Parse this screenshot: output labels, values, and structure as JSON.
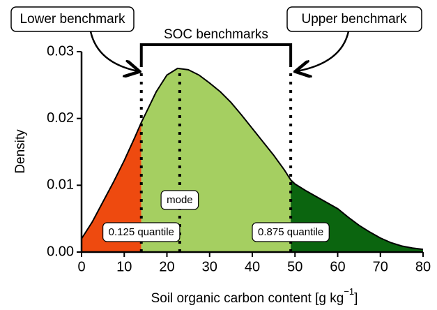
{
  "chart_data": {
    "type": "density",
    "x_label": [
      "Soil organic carbon content [g kg",
      "−1",
      "]"
    ],
    "y_label": "Density",
    "x": [
      0,
      2.5,
      5,
      7.5,
      10,
      12.5,
      14,
      15,
      17.5,
      20,
      22.5,
      25,
      27.5,
      30,
      32.5,
      35,
      37.5,
      40,
      42.5,
      45,
      47.5,
      49,
      50,
      52.5,
      55,
      57.5,
      60,
      62.5,
      65,
      67.5,
      70,
      72.5,
      75,
      77.5,
      80
    ],
    "values": [
      0.002,
      0.0045,
      0.0075,
      0.0105,
      0.0137,
      0.0172,
      0.0194,
      0.0207,
      0.024,
      0.0265,
      0.0275,
      0.0273,
      0.0265,
      0.0253,
      0.024,
      0.0224,
      0.0205,
      0.0185,
      0.0165,
      0.0145,
      0.0123,
      0.0108,
      0.0102,
      0.0092,
      0.0083,
      0.0074,
      0.0065,
      0.0052,
      0.004,
      0.003,
      0.0021,
      0.0014,
      0.0009,
      0.0006,
      0.0004
    ],
    "region_colors": [
      "#ee4a0f",
      "#a5cf61",
      "#0b650f"
    ],
    "markers": [
      {
        "x": 14,
        "label": "0.125 quantile"
      },
      {
        "x": 23,
        "label": "mode"
      },
      {
        "x": 49,
        "label": "0.875 quantile"
      }
    ],
    "benchmarks": {
      "label": "SOC benchmarks",
      "lower": "Lower benchmark",
      "upper": "Upper benchmark"
    },
    "xlim": [
      0,
      80
    ],
    "ylim": [
      0,
      0.03
    ],
    "xticks": [
      0,
      10,
      20,
      30,
      40,
      50,
      60,
      70,
      80
    ],
    "yticks": [
      {
        "value": 0,
        "label": "0.00"
      },
      0.01,
      0.02,
      0.03
    ]
  }
}
